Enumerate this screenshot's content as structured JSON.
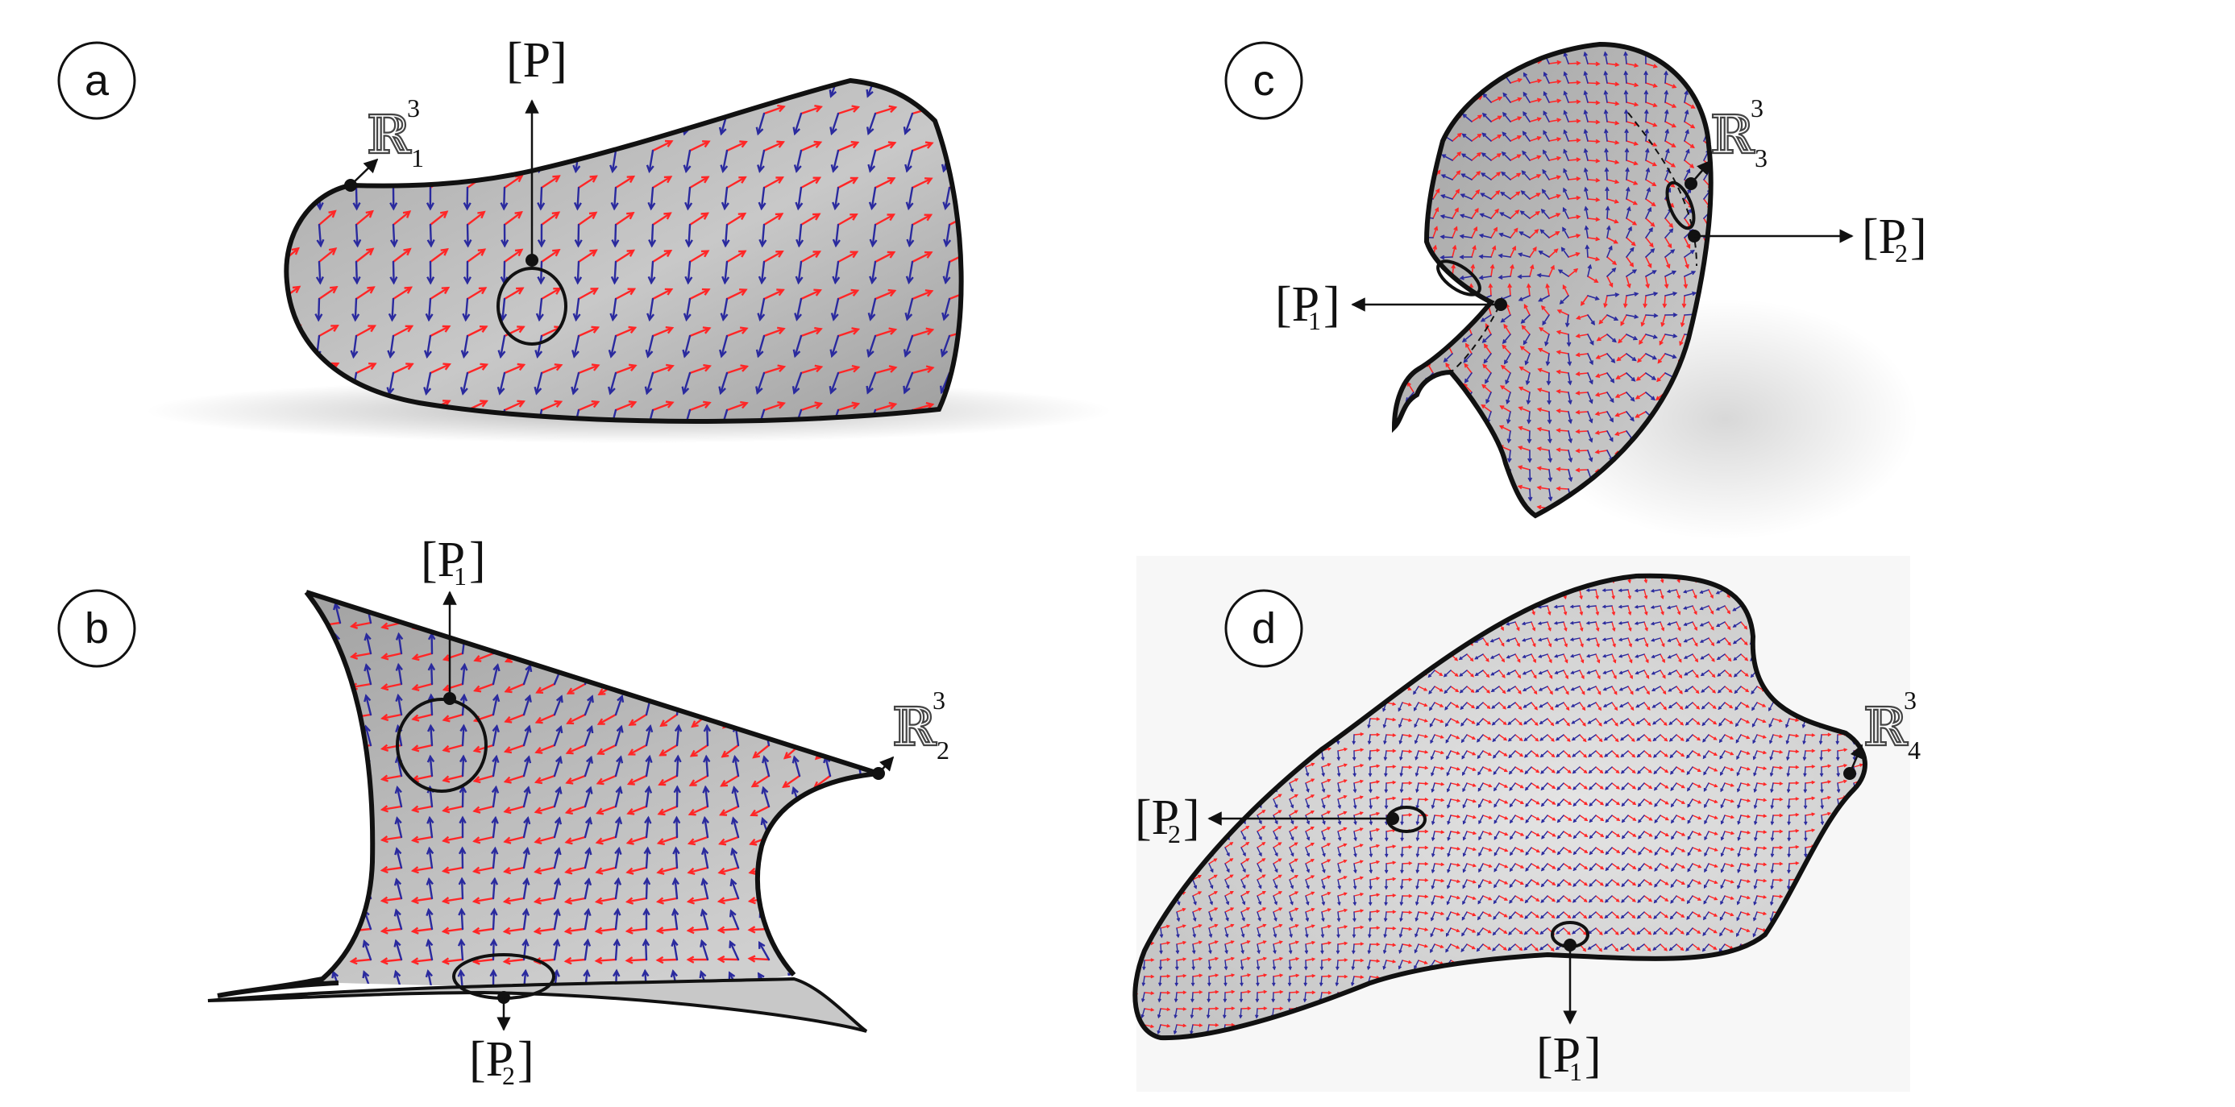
{
  "panels": [
    {
      "letter": "a",
      "space": {
        "base": "ℝ",
        "sup": "3",
        "sub": "1"
      },
      "points": [
        {
          "text": "[P]",
          "sub": ""
        }
      ]
    },
    {
      "letter": "b",
      "space": {
        "base": "ℝ",
        "sup": "3",
        "sub": "2"
      },
      "points": [
        {
          "text": "[P",
          "sub": "1"
        },
        {
          "text": "[P",
          "sub": "2"
        }
      ]
    },
    {
      "letter": "c",
      "space": {
        "base": "ℝ",
        "sup": "3",
        "sub": "3"
      },
      "points": [
        {
          "text": "[P",
          "sub": "1"
        },
        {
          "text": "[P",
          "sub": "2"
        }
      ]
    },
    {
      "letter": "d",
      "space": {
        "base": "ℝ",
        "sup": "3",
        "sub": "4"
      },
      "points": [
        {
          "text": "[P",
          "sub": "1"
        },
        {
          "text": "[P",
          "sub": "2"
        }
      ]
    }
  ],
  "bracket_close": "]",
  "colors": {
    "surface": "#b5b5b5",
    "surface_light": "#ececec",
    "outline": "#111111",
    "field_red": "#ff2626",
    "field_blue": "#2a2a9e"
  }
}
